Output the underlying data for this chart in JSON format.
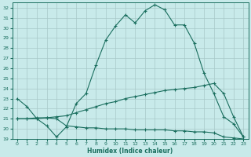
{
  "xlabel": "Humidex (Indice chaleur)",
  "ylabel": "",
  "bg_color": "#c8eaea",
  "line_color": "#1a6e5e",
  "grid_color": "#a8c8c8",
  "xlim": [
    -0.5,
    23.5
  ],
  "ylim": [
    19,
    32.5
  ],
  "xticks": [
    0,
    1,
    2,
    3,
    4,
    5,
    6,
    7,
    8,
    9,
    10,
    11,
    12,
    13,
    14,
    15,
    16,
    17,
    18,
    19,
    20,
    21,
    22,
    23
  ],
  "yticks": [
    19,
    20,
    21,
    22,
    23,
    24,
    25,
    26,
    27,
    28,
    29,
    30,
    31,
    32
  ],
  "line1_x": [
    0,
    1,
    2,
    3,
    4,
    5,
    6,
    7,
    8,
    9,
    10,
    11,
    12,
    13,
    14,
    15,
    16,
    17,
    18,
    19,
    20,
    21,
    22,
    23
  ],
  "line1_y": [
    23.0,
    22.2,
    21.0,
    20.3,
    19.2,
    20.2,
    22.5,
    23.5,
    26.3,
    28.8,
    30.2,
    31.3,
    30.5,
    31.7,
    32.3,
    31.8,
    30.3,
    30.3,
    28.5,
    25.5,
    23.5,
    21.2,
    20.5,
    19.2
  ],
  "line2_x": [
    0,
    1,
    2,
    3,
    4,
    5,
    6,
    7,
    8,
    9,
    10,
    11,
    12,
    13,
    14,
    15,
    16,
    17,
    18,
    19,
    20,
    21,
    22,
    23
  ],
  "line2_y": [
    21.0,
    21.0,
    21.0,
    21.1,
    21.2,
    21.3,
    21.6,
    21.9,
    22.2,
    22.5,
    22.7,
    23.0,
    23.2,
    23.4,
    23.6,
    23.8,
    23.9,
    24.0,
    24.1,
    24.3,
    24.5,
    23.5,
    21.2,
    19.2
  ],
  "line3_x": [
    0,
    1,
    2,
    3,
    4,
    5,
    6,
    7,
    8,
    9,
    10,
    11,
    12,
    13,
    14,
    15,
    16,
    17,
    18,
    19,
    20,
    21,
    22,
    23
  ],
  "line3_y": [
    21.0,
    21.0,
    21.1,
    21.1,
    21.0,
    20.3,
    20.2,
    20.1,
    20.1,
    20.0,
    20.0,
    20.0,
    19.9,
    19.9,
    19.9,
    19.9,
    19.8,
    19.8,
    19.7,
    19.7,
    19.6,
    19.2,
    19.1,
    19.0
  ]
}
